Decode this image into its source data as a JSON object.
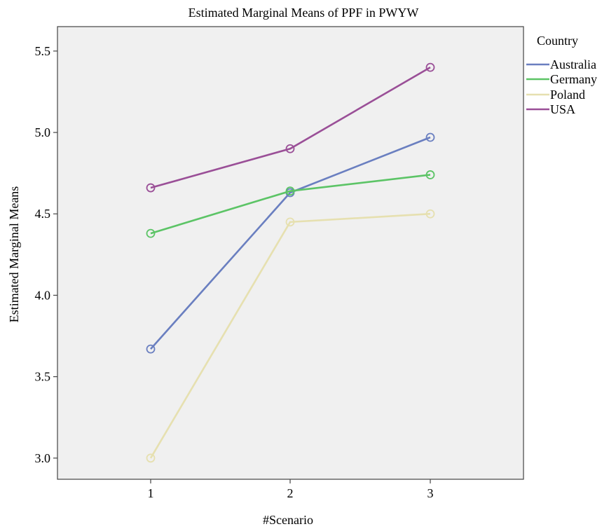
{
  "chart_data": {
    "type": "line",
    "title": "Estimated Marginal Means of PPF in PWYW",
    "xlabel": "#Scenario",
    "ylabel": "Estimated Marginal Means",
    "categories": [
      "1",
      "2",
      "3"
    ],
    "ylim": [
      2.87,
      5.65
    ],
    "yticks": [
      "3.0",
      "3.5",
      "4.0",
      "4.5",
      "5.0",
      "5.5"
    ],
    "grid": false,
    "legend_title": "Country",
    "legend_position": "right",
    "series": [
      {
        "name": "Australia",
        "color": "#6a7fc0",
        "values": [
          3.67,
          4.63,
          4.97
        ]
      },
      {
        "name": "Germany",
        "color": "#5cc466",
        "values": [
          4.38,
          4.64,
          4.74
        ]
      },
      {
        "name": "Poland",
        "color": "#e6e0b0",
        "values": [
          3.0,
          4.45,
          4.5
        ]
      },
      {
        "name": "USA",
        "color": "#9a4f97",
        "values": [
          4.66,
          4.9,
          5.4
        ]
      }
    ]
  }
}
